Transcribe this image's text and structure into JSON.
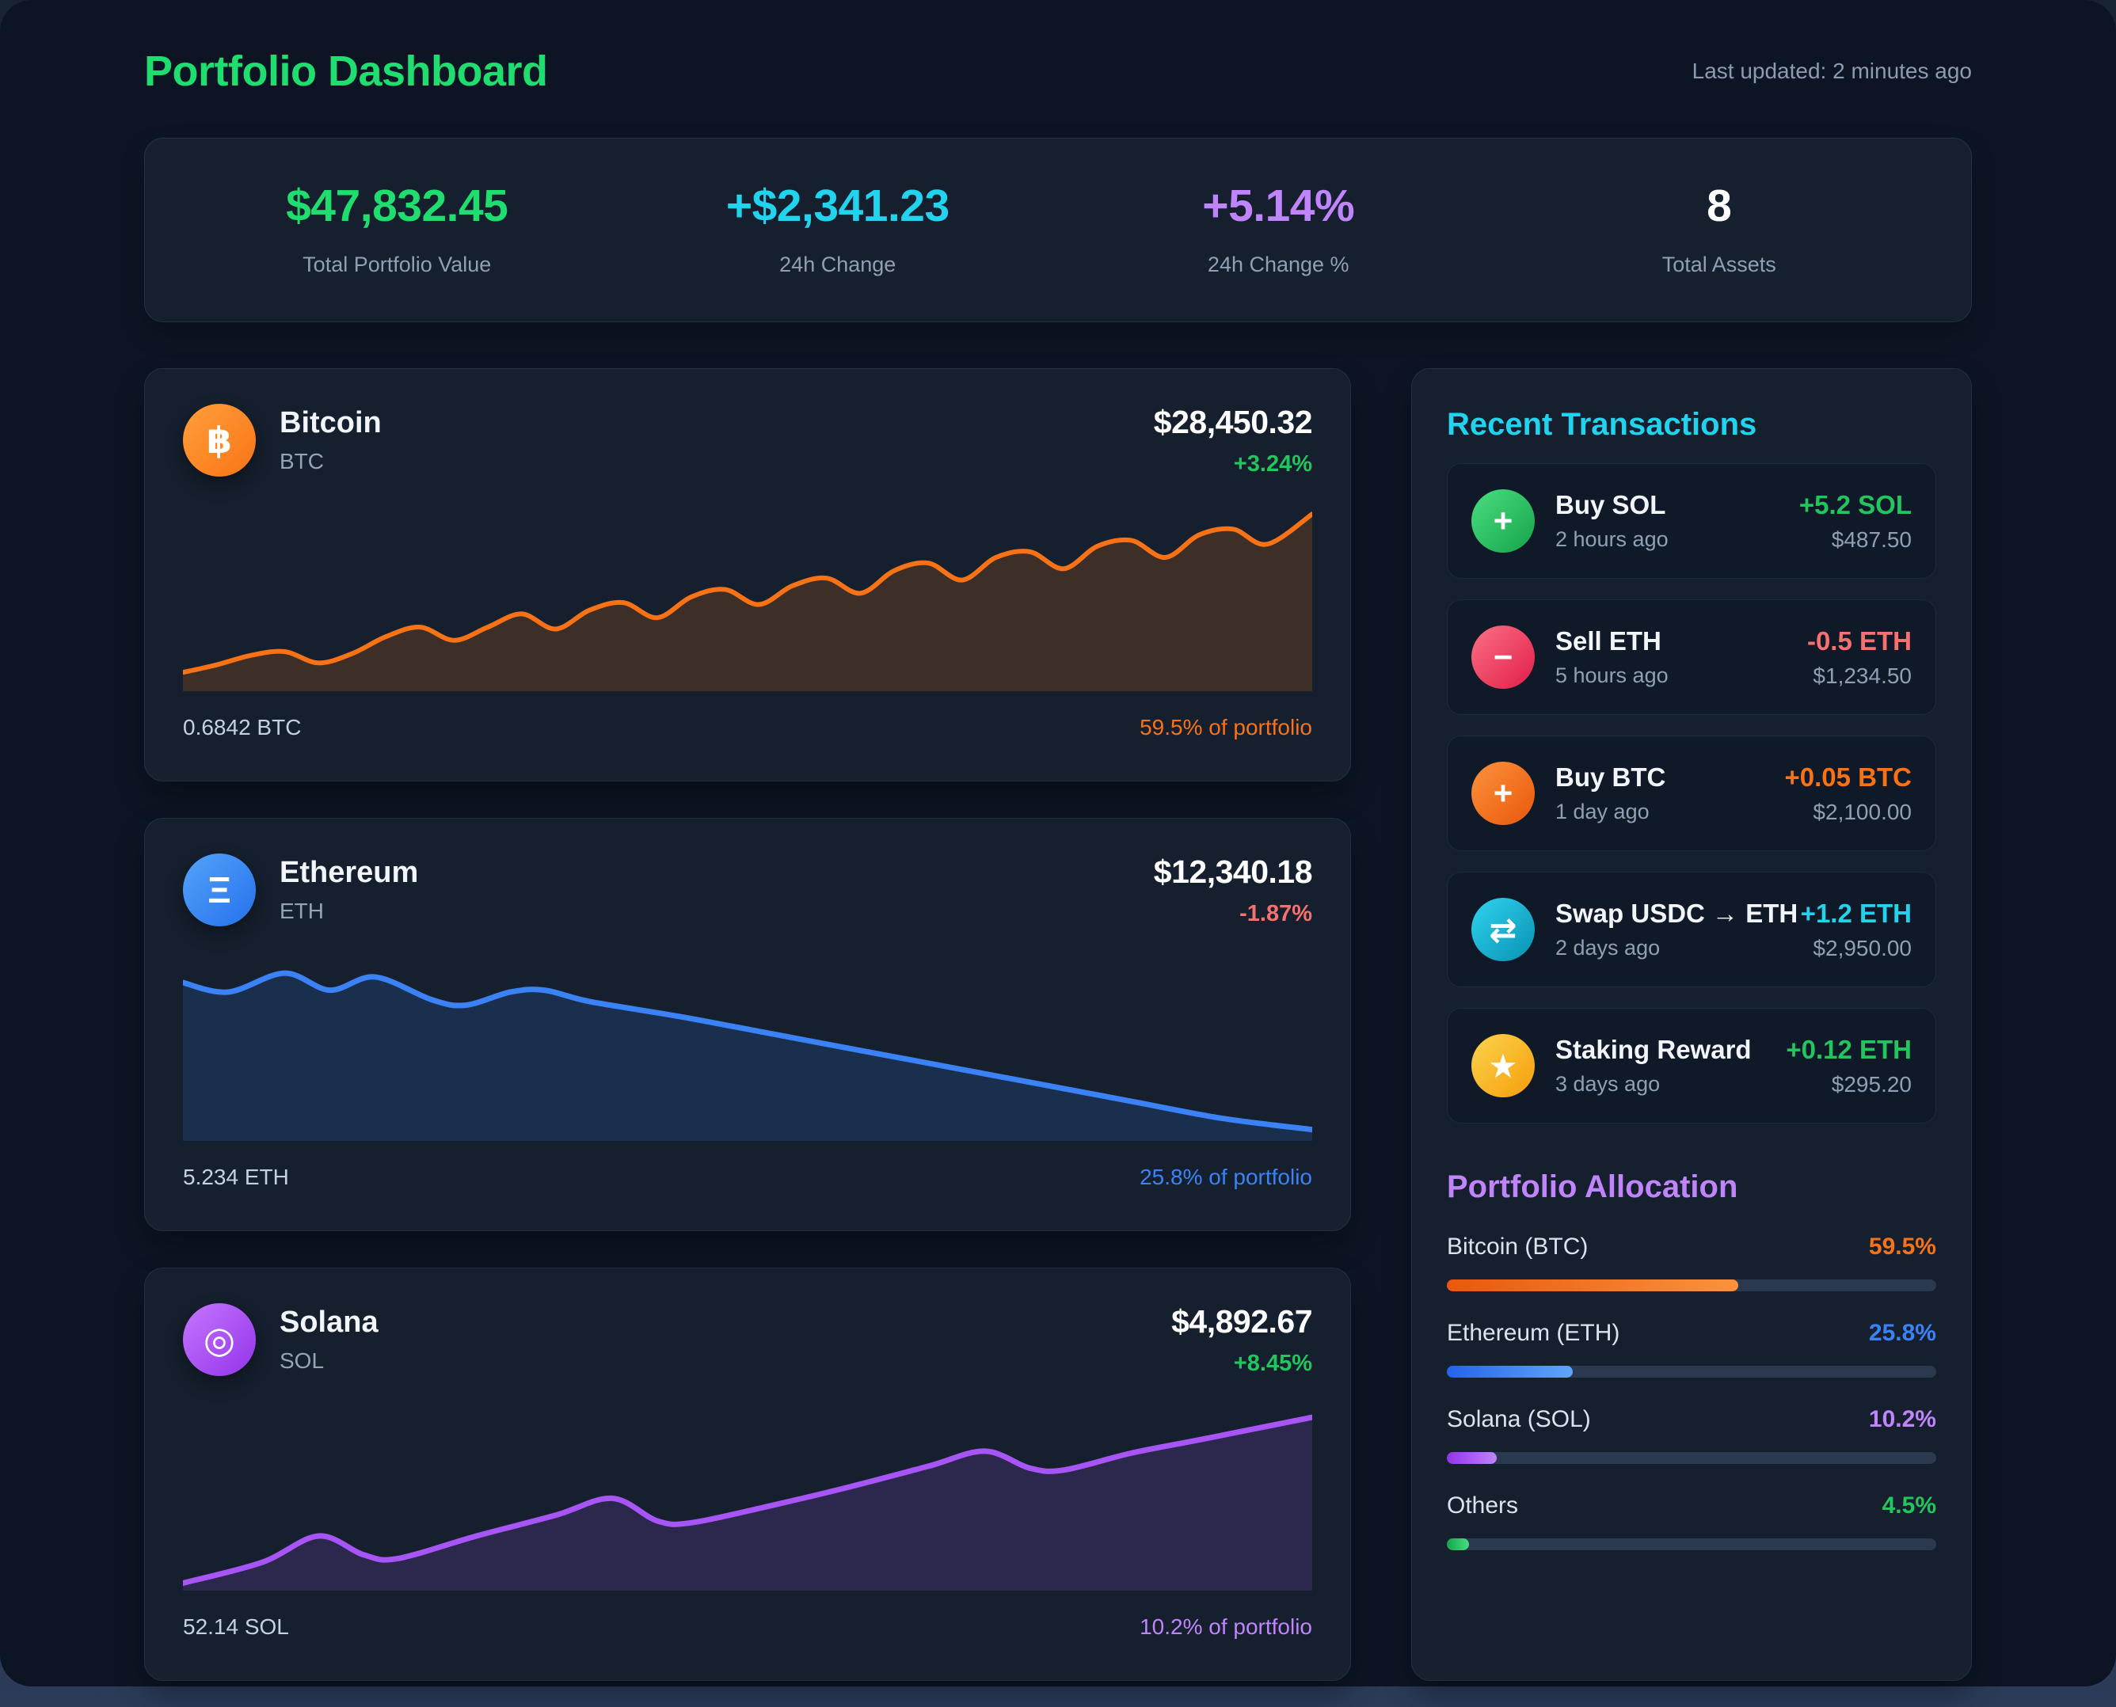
{
  "header": {
    "title": "Portfolio Dashboard",
    "title_color": "#1fdd6f",
    "last_updated": "Last updated: 2 minutes ago"
  },
  "stats": [
    {
      "value": "$47,832.45",
      "label": "Total Portfolio Value",
      "color": "#1fdd6f"
    },
    {
      "value": "+$2,341.23",
      "label": "24h Change",
      "color": "#22d3ee"
    },
    {
      "value": "+5.14%",
      "label": "24h Change %",
      "color": "#c084fc"
    },
    {
      "value": "8",
      "label": "Total Assets",
      "color": "#ffffff"
    }
  ],
  "assets": [
    {
      "name": "Bitcoin",
      "symbol": "BTC",
      "icon_glyph": "฿",
      "price": "$28,450.32",
      "change": "+3.24%",
      "change_color": "#22c55e",
      "holding": "0.6842 BTC",
      "share": "59.5% of portfolio",
      "share_color": "#f97316",
      "icon_gradient": [
        "#ffa03a",
        "#f97316"
      ]
    },
    {
      "name": "Ethereum",
      "symbol": "ETH",
      "icon_glyph": "Ξ",
      "price": "$12,340.18",
      "change": "-1.87%",
      "change_color": "#f87171",
      "holding": "5.234 ETH",
      "share": "25.8% of portfolio",
      "share_color": "#3b82f6",
      "icon_gradient": [
        "#55a4f9",
        "#2470ec"
      ]
    },
    {
      "name": "Solana",
      "symbol": "SOL",
      "icon_glyph": "◎",
      "price": "$4,892.67",
      "change": "+8.45%",
      "change_color": "#22c55e",
      "holding": "52.14 SOL",
      "share": "10.2% of portfolio",
      "share_color": "#c084fc",
      "icon_gradient": [
        "#c776ff",
        "#9333ea"
      ]
    }
  ],
  "chart_data": [
    {
      "type": "line",
      "name": "Bitcoin price sparkline",
      "color": "#f97316",
      "fill_opacity": 0.18,
      "x_range": [
        0,
        100
      ],
      "value_range": [
        0,
        100
      ],
      "grid": false,
      "legend": false,
      "points": [
        [
          0,
          10
        ],
        [
          3,
          14
        ],
        [
          6,
          19
        ],
        [
          9,
          21
        ],
        [
          12,
          15
        ],
        [
          15,
          20
        ],
        [
          18,
          29
        ],
        [
          21,
          34
        ],
        [
          24,
          27
        ],
        [
          27,
          34
        ],
        [
          30,
          41
        ],
        [
          33,
          33
        ],
        [
          36,
          43
        ],
        [
          39,
          47
        ],
        [
          42,
          39
        ],
        [
          45,
          50
        ],
        [
          48,
          54
        ],
        [
          51,
          46
        ],
        [
          54,
          56
        ],
        [
          57,
          60
        ],
        [
          60,
          52
        ],
        [
          63,
          64
        ],
        [
          66,
          68
        ],
        [
          69,
          59
        ],
        [
          72,
          71
        ],
        [
          75,
          74
        ],
        [
          78,
          65
        ],
        [
          81,
          77
        ],
        [
          84,
          80
        ],
        [
          87,
          71
        ],
        [
          90,
          83
        ],
        [
          93,
          86
        ],
        [
          96,
          78
        ],
        [
          100,
          94
        ]
      ]
    },
    {
      "type": "line",
      "name": "Ethereum price sparkline",
      "color": "#3b82f6",
      "fill_opacity": 0.16,
      "x_range": [
        0,
        100
      ],
      "value_range": [
        0,
        100
      ],
      "grid": false,
      "legend": false,
      "points": [
        [
          0,
          84
        ],
        [
          4,
          79
        ],
        [
          9,
          89
        ],
        [
          13,
          80
        ],
        [
          17,
          87
        ],
        [
          22,
          75
        ],
        [
          25,
          72
        ],
        [
          29,
          79
        ],
        [
          32,
          80
        ],
        [
          36,
          74
        ],
        [
          44,
          66
        ],
        [
          52,
          57
        ],
        [
          60,
          48
        ],
        [
          68,
          39
        ],
        [
          76,
          30
        ],
        [
          84,
          21
        ],
        [
          92,
          12
        ],
        [
          100,
          6
        ]
      ]
    },
    {
      "type": "line",
      "name": "Solana price sparkline",
      "color": "#a855f7",
      "fill_opacity": 0.16,
      "x_range": [
        0,
        100
      ],
      "value_range": [
        0,
        100
      ],
      "grid": false,
      "legend": false,
      "points": [
        [
          0,
          4
        ],
        [
          7,
          15
        ],
        [
          12,
          29
        ],
        [
          16,
          19
        ],
        [
          19,
          17
        ],
        [
          26,
          29
        ],
        [
          33,
          40
        ],
        [
          38,
          49
        ],
        [
          42,
          37
        ],
        [
          45,
          36
        ],
        [
          52,
          45
        ],
        [
          59,
          55
        ],
        [
          66,
          66
        ],
        [
          71,
          74
        ],
        [
          75,
          65
        ],
        [
          78,
          64
        ],
        [
          84,
          73
        ],
        [
          90,
          80
        ],
        [
          95,
          86
        ],
        [
          100,
          92
        ]
      ]
    }
  ],
  "transactions": {
    "heading": "Recent Transactions",
    "heading_color": "#22d3ee",
    "items": [
      {
        "title": "Buy SOL",
        "time": "2 hours ago",
        "amount": "+5.2 SOL",
        "amount_color": "#22c55e",
        "usd": "$487.50",
        "icon_glyph": "+",
        "icon_gradient": [
          "#4ade80",
          "#16a34a"
        ]
      },
      {
        "title": "Sell ETH",
        "time": "5 hours ago",
        "amount": "-0.5 ETH",
        "amount_color": "#f87171",
        "usd": "$1,234.50",
        "icon_glyph": "−",
        "icon_gradient": [
          "#fb7185",
          "#e11d48"
        ]
      },
      {
        "title": "Buy BTC",
        "time": "1 day ago",
        "amount": "+0.05 BTC",
        "amount_color": "#f97316",
        "usd": "$2,100.00",
        "icon_glyph": "+",
        "icon_gradient": [
          "#fb923c",
          "#ea580c"
        ]
      },
      {
        "title": "Swap USDC → ETH",
        "time": "2 days ago",
        "amount": "+1.2 ETH",
        "amount_color": "#22d3ee",
        "usd": "$2,950.00",
        "icon_glyph": "⇄",
        "icon_gradient": [
          "#2fd4ee",
          "#0891b2"
        ]
      },
      {
        "title": "Staking Reward",
        "time": "3 days ago",
        "amount": "+0.12 ETH",
        "amount_color": "#22c55e",
        "usd": "$295.20",
        "icon_glyph": "★",
        "icon_gradient": [
          "#fcd34d",
          "#f59e0b"
        ]
      }
    ]
  },
  "allocation": {
    "heading": "Portfolio Allocation",
    "heading_color": "#c084fc",
    "rows": [
      {
        "label": "Bitcoin (BTC)",
        "pct": "59.5%",
        "value": 59.5,
        "color": "#f97316",
        "gradient": [
          "#ea580c",
          "#fb923c"
        ]
      },
      {
        "label": "Ethereum (ETH)",
        "pct": "25.8%",
        "value": 25.8,
        "color": "#3b82f6",
        "gradient": [
          "#2563eb",
          "#60a5fa"
        ]
      },
      {
        "label": "Solana (SOL)",
        "pct": "10.2%",
        "value": 10.2,
        "color": "#c084fc",
        "gradient": [
          "#9333ea",
          "#c084fc"
        ]
      },
      {
        "label": "Others",
        "pct": "4.5%",
        "value": 4.5,
        "color": "#22c55e",
        "gradient": [
          "#16a34a",
          "#4ade80"
        ]
      }
    ]
  }
}
